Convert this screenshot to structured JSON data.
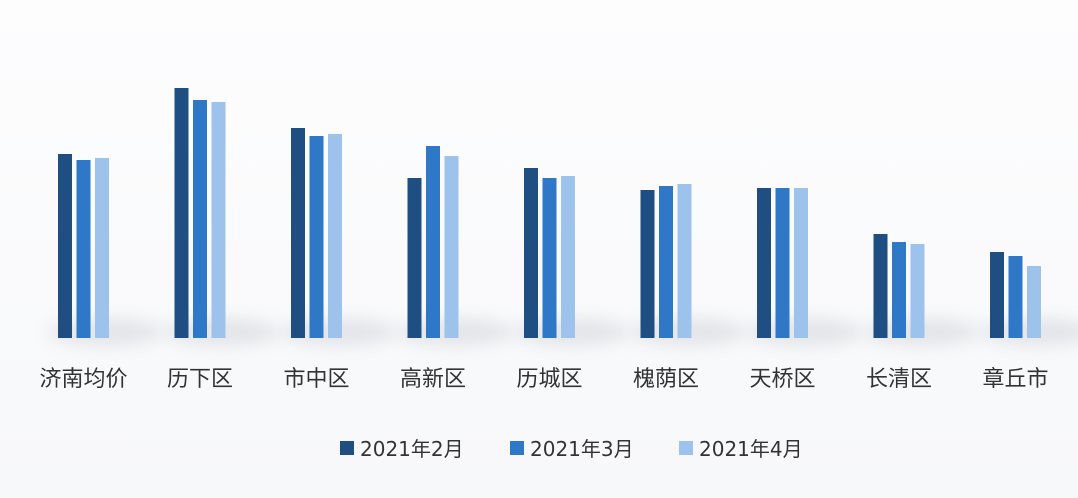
{
  "chart_data": {
    "type": "bar",
    "categories": [
      "济南均价",
      "历下区",
      "市中区",
      "高新区",
      "历城区",
      "槐荫区",
      "天桥区",
      "长清区",
      "章丘市"
    ],
    "series": [
      {
        "name": "2021年2月",
        "color": "#1f4e82",
        "values": [
          184,
          250,
          210,
          160,
          170,
          148,
          150,
          104,
          86
        ]
      },
      {
        "name": "2021年3月",
        "color": "#2e78c7",
        "values": [
          178,
          238,
          202,
          192,
          160,
          152,
          150,
          96,
          82
        ]
      },
      {
        "name": "2021年4月",
        "color": "#9dc3ec",
        "values": [
          180,
          236,
          204,
          182,
          162,
          154,
          150,
          94,
          72
        ]
      }
    ],
    "ylim": [
      0,
      250
    ],
    "grid": false,
    "legend_position": "bottom"
  }
}
